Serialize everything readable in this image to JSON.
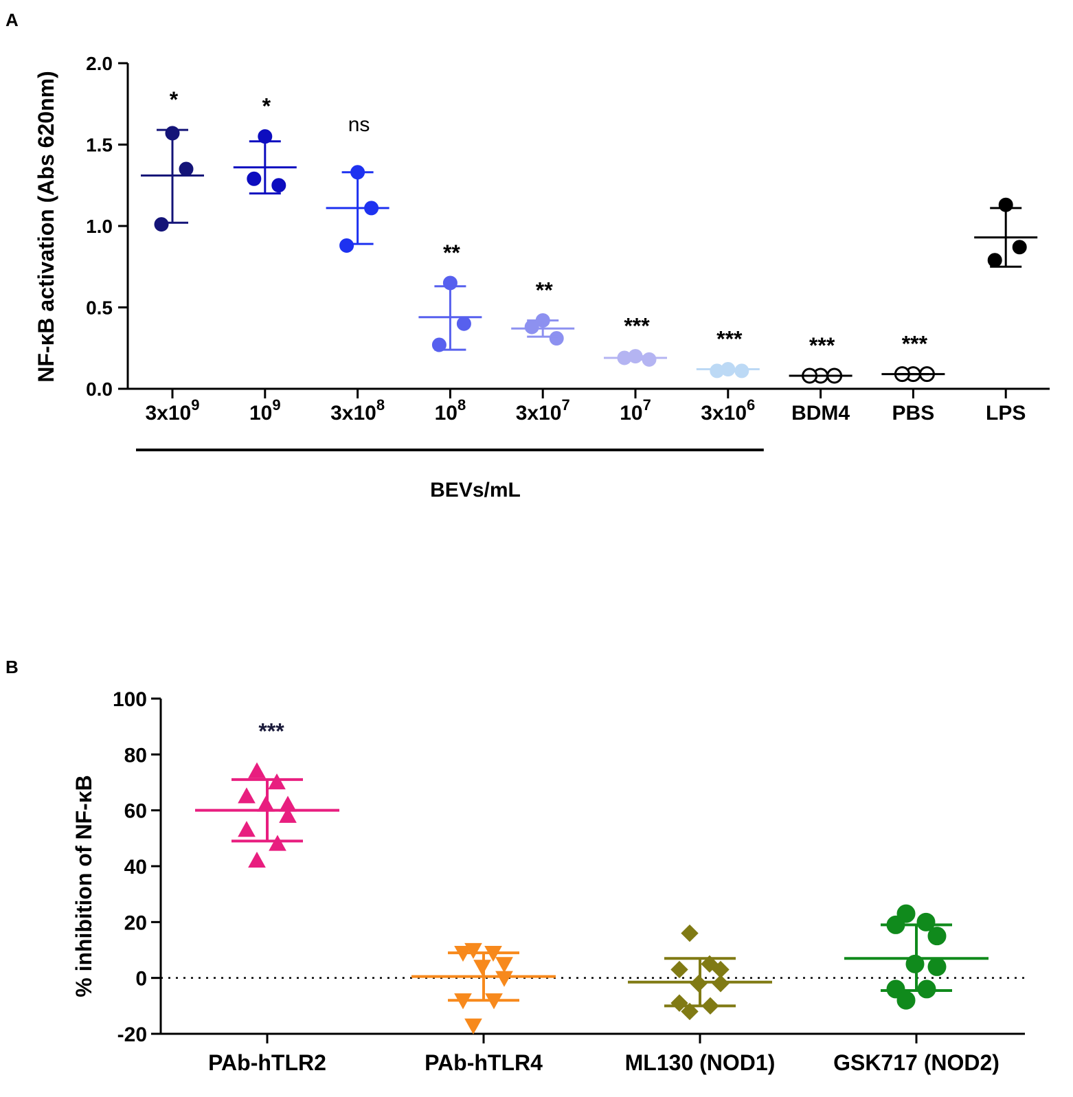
{
  "chart_data": [
    {
      "panel_label": "A",
      "type": "scatter",
      "ylabel": "NF-κB activation (Abs 620nm)",
      "ylim": [
        0,
        2.0
      ],
      "yticks": [
        0.0,
        0.5,
        1.0,
        1.5,
        2.0
      ],
      "ytick_labels": [
        "0.0",
        "0.5",
        "1.0",
        "1.5",
        "2.0"
      ],
      "group_bracket_label": "BEVs/mL",
      "categories": [
        {
          "base": "3x10",
          "exp": "9",
          "color": "#141478",
          "marker": "circle",
          "filled": true,
          "points": [
            1.57,
            1.35,
            1.01
          ],
          "mean": 1.31,
          "err_low": 1.02,
          "err_high": 1.59,
          "sig": "*"
        },
        {
          "base": "10",
          "exp": "9",
          "color": "#0d0dbf",
          "marker": "circle",
          "filled": true,
          "points": [
            1.55,
            1.25,
            1.29
          ],
          "mean": 1.36,
          "err_low": 1.2,
          "err_high": 1.52,
          "sig": "*"
        },
        {
          "base": "3x10",
          "exp": "8",
          "color": "#1e32f0",
          "marker": "circle",
          "filled": true,
          "points": [
            1.33,
            1.11,
            0.88
          ],
          "mean": 1.11,
          "err_low": 0.89,
          "err_high": 1.33,
          "sig": "ns"
        },
        {
          "base": "10",
          "exp": "8",
          "color": "#5760ee",
          "marker": "circle",
          "filled": true,
          "points": [
            0.65,
            0.4,
            0.27
          ],
          "mean": 0.44,
          "err_low": 0.24,
          "err_high": 0.63,
          "sig": "**"
        },
        {
          "base": "3x10",
          "exp": "7",
          "color": "#8d91f0",
          "marker": "circle",
          "filled": true,
          "points": [
            0.42,
            0.31,
            0.38
          ],
          "mean": 0.37,
          "err_low": 0.32,
          "err_high": 0.42,
          "sig": "**"
        },
        {
          "base": "10",
          "exp": "7",
          "color": "#b4b4f2",
          "marker": "circle",
          "filled": true,
          "points": [
            0.2,
            0.18,
            0.19
          ],
          "mean": 0.19,
          "err_low": 0.18,
          "err_high": 0.2,
          "sig": "***"
        },
        {
          "base": "3x10",
          "exp": "6",
          "color": "#bcd9f5",
          "marker": "circle",
          "filled": true,
          "points": [
            0.12,
            0.11,
            0.11
          ],
          "mean": 0.12,
          "err_low": 0.11,
          "err_high": 0.12,
          "sig": "***"
        },
        {
          "base": "BDM4",
          "exp": "",
          "color": "#000000",
          "marker": "circle",
          "filled": false,
          "points": [
            0.08,
            0.08,
            0.08
          ],
          "mean": 0.08,
          "err_low": 0.08,
          "err_high": 0.08,
          "sig": "***"
        },
        {
          "base": "PBS",
          "exp": "",
          "color": "#000000",
          "marker": "circle",
          "filled": false,
          "points": [
            0.09,
            0.09,
            0.09
          ],
          "mean": 0.09,
          "err_low": 0.09,
          "err_high": 0.09,
          "sig": "***"
        },
        {
          "base": "LPS",
          "exp": "",
          "color": "#000000",
          "marker": "circle",
          "filled": true,
          "points": [
            1.13,
            0.87,
            0.79
          ],
          "mean": 0.93,
          "err_low": 0.75,
          "err_high": 1.11,
          "sig": ""
        }
      ]
    },
    {
      "panel_label": "B",
      "type": "scatter",
      "ylabel": "% inhibition of NF-κB",
      "ylim": [
        -20,
        100
      ],
      "yticks": [
        -20,
        0,
        20,
        40,
        60,
        80,
        100
      ],
      "ytick_labels": [
        "-20",
        "0",
        "20",
        "40",
        "60",
        "80",
        "100"
      ],
      "reference_line": 0,
      "categories": [
        {
          "label": "PAb-hTLR2",
          "color": "#e81e7f",
          "marker": "triangle-up",
          "points": [
            74,
            70,
            65,
            62,
            62,
            58,
            53,
            48,
            42
          ],
          "mean": 60,
          "err_low": 49,
          "err_high": 71,
          "sig": "***"
        },
        {
          "label": "PAb-hTLR4",
          "color": "#f7891c",
          "marker": "triangle-down",
          "points": [
            10,
            9,
            9,
            5,
            4,
            0,
            -8,
            -8,
            -17
          ],
          "mean": 0.5,
          "err_low": -8,
          "err_high": 9,
          "sig": ""
        },
        {
          "label": "ML130 (NOD1)",
          "color": "#807a14",
          "marker": "diamond",
          "points": [
            16,
            5,
            3,
            3,
            -2,
            -2,
            -9,
            -10,
            -12
          ],
          "mean": -1.5,
          "err_low": -10,
          "err_high": 7,
          "sig": ""
        },
        {
          "label": "GSK717 (NOD2)",
          "color": "#108a1c",
          "marker": "circle",
          "points": [
            23,
            20,
            19,
            15,
            5,
            4,
            -4,
            -4,
            -8
          ],
          "mean": 7,
          "err_low": -4.5,
          "err_high": 19,
          "sig": ""
        }
      ]
    }
  ]
}
